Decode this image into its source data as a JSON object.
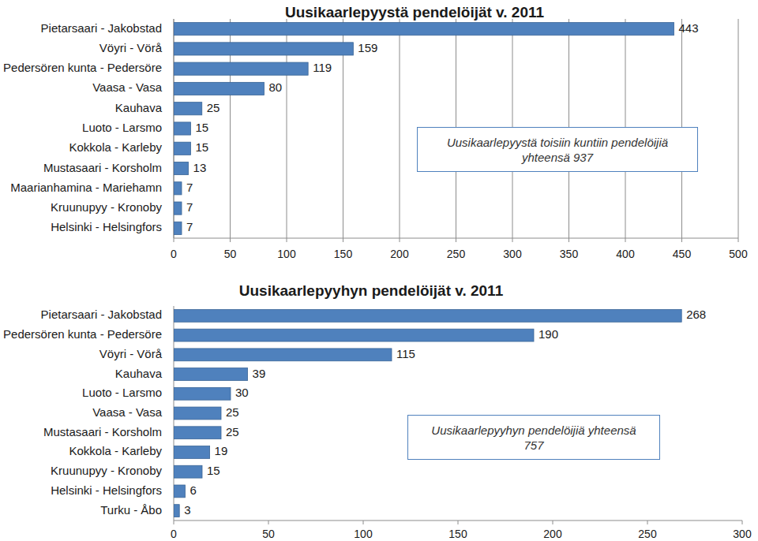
{
  "chart_data": [
    {
      "type": "bar",
      "orientation": "horizontal",
      "title": "Uusikaarlepyystä pendelöijät v. 2011",
      "categories": [
        "Pietarsaari - Jakobstad",
        "Vöyri - Vörå",
        "Pedersören kunta - Pedersöre",
        "Vaasa - Vasa",
        "Kauhava",
        "Luoto - Larsmo",
        "Kokkola - Karleby",
        "Mustasaari - Korsholm",
        "Maarianhamina - Mariehamn",
        "Kruunupyy - Kronoby",
        "Helsinki - Helsingfors"
      ],
      "values": [
        443,
        159,
        119,
        80,
        25,
        15,
        15,
        13,
        7,
        7,
        7
      ],
      "color": "#4f81bd",
      "xlim": [
        0,
        500
      ],
      "xticks": [
        0,
        50,
        100,
        150,
        200,
        250,
        300,
        350,
        400,
        450,
        500
      ],
      "grid": true,
      "data_labels": true,
      "annotations": [
        "Uusikaarlepyystä toisiin kuntiin pendelöijiä yhteensä 937"
      ]
    },
    {
      "type": "bar",
      "orientation": "horizontal",
      "title": "Uusikaarlepyyhyn pendelöijät v. 2011",
      "categories": [
        "Pietarsaari - Jakobstad",
        "Pedersören kunta - Pedersöre",
        "Vöyri - Vörå",
        "Kauhava",
        "Luoto - Larsmo",
        "Vaasa - Vasa",
        "Mustasaari - Korsholm",
        "Kokkola - Karleby",
        "Kruunupyy - Kronoby",
        "Helsinki - Helsingfors",
        "Turku - Åbo"
      ],
      "values": [
        268,
        190,
        115,
        39,
        30,
        25,
        25,
        19,
        15,
        6,
        3
      ],
      "color": "#4f81bd",
      "xlim": [
        0,
        300
      ],
      "xticks": [
        0,
        50,
        100,
        150,
        200,
        250,
        300
      ],
      "grid": false,
      "data_labels": true,
      "annotations": [
        "Uusikaarlepyyhyn pendelöijiä yhteensä 757"
      ]
    }
  ]
}
